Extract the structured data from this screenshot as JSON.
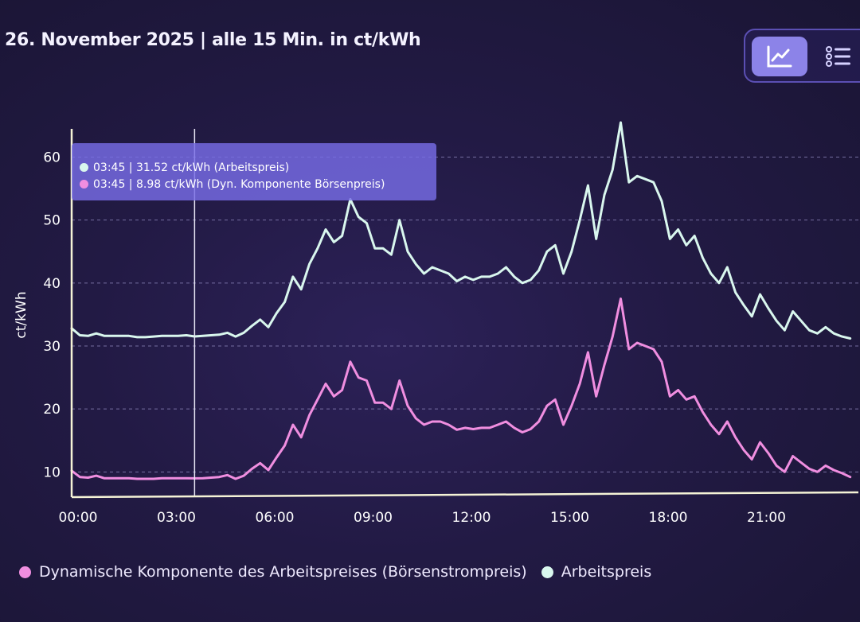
{
  "header": {
    "title": "26. November 2025 | alle 15 Min. in ct/kWh"
  },
  "view_toggle": {
    "chart_icon": "line-chart-icon",
    "list_icon": "list-icon"
  },
  "tooltip": {
    "line1": "03:45 | 31.52 ct/kWh (Arbeitspreis)",
    "line2": "03:45 | 8.98 ct/kWh (Dyn. Komponente Börsenpreis)"
  },
  "legend": {
    "item1": "Dynamische Komponente des Arbeitspreises (Börsenstrompreis)",
    "item2": "Arbeitspreis"
  },
  "colors": {
    "arbeitspreis": "#d9f7ee",
    "dynamisch": "#f08ee0",
    "axis": "#f5f3d6",
    "grid": "#8a83b8"
  },
  "chart_data": {
    "type": "line",
    "title": "26. November 2025 | alle 15 Min. in ct/kWh",
    "xlabel": "",
    "ylabel": "ct/kWh",
    "ylim": [
      6,
      66
    ],
    "yticks": [
      10,
      20,
      30,
      40,
      50,
      60
    ],
    "xlim": [
      0,
      24
    ],
    "xticks": [
      0,
      3,
      6,
      9,
      12,
      15,
      18,
      21
    ],
    "xticklabels": [
      "00:00",
      "03:00",
      "06:00",
      "09:00",
      "12:00",
      "15:00",
      "18:00",
      "21:00"
    ],
    "cursor_x": 3.75,
    "series": [
      {
        "name": "Arbeitspreis",
        "x": [
          0,
          0.25,
          0.5,
          0.75,
          1,
          1.25,
          1.5,
          1.75,
          2,
          2.25,
          2.5,
          2.75,
          3,
          3.25,
          3.5,
          3.75,
          4,
          4.25,
          4.5,
          4.75,
          5,
          5.25,
          5.5,
          5.75,
          6,
          6.25,
          6.5,
          6.75,
          7,
          7.25,
          7.5,
          7.75,
          8,
          8.25,
          8.5,
          8.75,
          9,
          9.25,
          9.5,
          9.75,
          10,
          10.25,
          10.5,
          10.75,
          11,
          11.25,
          11.5,
          11.75,
          12,
          12.25,
          12.5,
          12.75,
          13,
          13.25,
          13.5,
          13.75,
          14,
          14.25,
          14.5,
          14.75,
          15,
          15.25,
          15.5,
          15.75,
          16,
          16.25,
          16.5,
          16.75,
          17,
          17.25,
          17.5,
          17.75,
          18,
          18.25,
          18.5,
          18.75,
          19,
          19.25,
          19.5,
          19.75,
          20,
          20.25,
          20.5,
          20.75,
          21,
          21.25,
          21.5,
          21.75,
          22,
          22.25,
          22.5,
          22.75,
          23,
          23.25,
          23.5,
          23.75
        ],
        "values": [
          32.8,
          31.7,
          31.6,
          32.0,
          31.6,
          31.6,
          31.6,
          31.6,
          31.4,
          31.4,
          31.5,
          31.6,
          31.6,
          31.6,
          31.7,
          31.52,
          31.6,
          31.7,
          31.8,
          32.1,
          31.5,
          32.1,
          33.2,
          34.2,
          33.0,
          35.2,
          37.0,
          41.0,
          39.0,
          43.0,
          45.5,
          48.5,
          46.5,
          47.5,
          53.3,
          50.5,
          49.5,
          45.5,
          45.5,
          44.5,
          50.0,
          45.0,
          43.0,
          41.5,
          42.5,
          42.0,
          41.5,
          40.3,
          41.0,
          40.5,
          41.0,
          41.0,
          41.5,
          42.5,
          41.0,
          40.0,
          40.5,
          42.0,
          45.0,
          46.0,
          41.5,
          45.0,
          50.0,
          55.5,
          47.0,
          54.0,
          58.0,
          65.5,
          56.0,
          57.0,
          56.5,
          56.0,
          53.0,
          47.0,
          48.5,
          46.0,
          47.5,
          44.0,
          41.5,
          40.0,
          42.5,
          38.5,
          36.5,
          34.7,
          38.2,
          36.0,
          34.0,
          32.5,
          35.5,
          34.0,
          32.5,
          32.0,
          33.0,
          32.0,
          31.5,
          31.2
        ]
      },
      {
        "name": "Dynamische Komponente des Arbeitspreises (Börsenstrompreis)",
        "x": [
          0,
          0.25,
          0.5,
          0.75,
          1,
          1.25,
          1.5,
          1.75,
          2,
          2.25,
          2.5,
          2.75,
          3,
          3.25,
          3.5,
          3.75,
          4,
          4.25,
          4.5,
          4.75,
          5,
          5.25,
          5.5,
          5.75,
          6,
          6.25,
          6.5,
          6.75,
          7,
          7.25,
          7.5,
          7.75,
          8,
          8.25,
          8.5,
          8.75,
          9,
          9.25,
          9.5,
          9.75,
          10,
          10.25,
          10.5,
          10.75,
          11,
          11.25,
          11.5,
          11.75,
          12,
          12.25,
          12.5,
          12.75,
          13,
          13.25,
          13.5,
          13.75,
          14,
          14.25,
          14.5,
          14.75,
          15,
          15.25,
          15.5,
          15.75,
          16,
          16.25,
          16.5,
          16.75,
          17,
          17.25,
          17.5,
          17.75,
          18,
          18.25,
          18.5,
          18.75,
          19,
          19.25,
          19.5,
          19.75,
          20,
          20.25,
          20.5,
          20.75,
          21,
          21.25,
          21.5,
          21.75,
          22,
          22.25,
          22.5,
          22.75,
          23,
          23.25,
          23.5,
          23.75
        ],
        "values": [
          10.2,
          9.2,
          9.1,
          9.4,
          9.0,
          9.0,
          9.0,
          9.0,
          8.9,
          8.9,
          8.9,
          9.0,
          9.0,
          9.0,
          9.0,
          8.98,
          9.0,
          9.1,
          9.2,
          9.5,
          8.9,
          9.4,
          10.5,
          11.4,
          10.3,
          12.3,
          14.2,
          17.5,
          15.5,
          19.0,
          21.5,
          24.0,
          22.0,
          23.0,
          27.5,
          25.0,
          24.5,
          21.0,
          21.0,
          20.0,
          24.5,
          20.5,
          18.5,
          17.5,
          18.0,
          18.0,
          17.5,
          16.7,
          17.0,
          16.8,
          17.0,
          17.0,
          17.5,
          18.0,
          17.0,
          16.3,
          16.8,
          18.0,
          20.5,
          21.5,
          17.5,
          20.5,
          24.0,
          29.0,
          22.0,
          27.0,
          31.5,
          37.5,
          29.5,
          30.5,
          30.0,
          29.5,
          27.5,
          22.0,
          23.0,
          21.5,
          22.0,
          19.5,
          17.5,
          16.0,
          18.0,
          15.5,
          13.5,
          12.0,
          14.7,
          13.0,
          11.0,
          10.0,
          12.5,
          11.5,
          10.5,
          10.0,
          11.0,
          10.3,
          9.8,
          9.2
        ]
      }
    ]
  }
}
